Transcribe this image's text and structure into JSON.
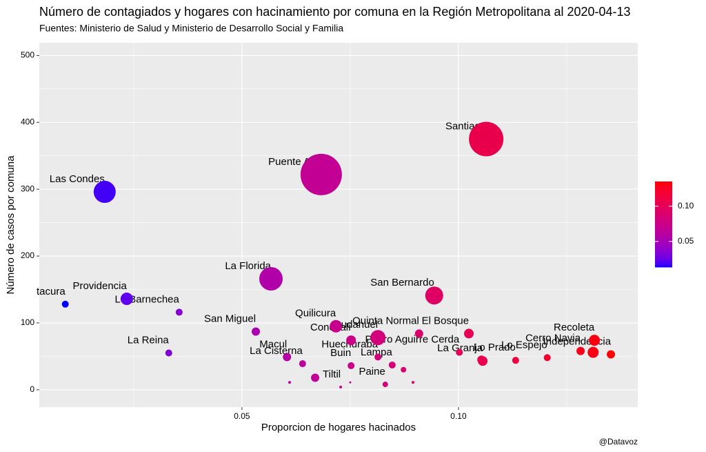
{
  "chart_data": {
    "type": "scatter",
    "title": "Número de contagiados y hogares con hacinamiento por comuna en la Región Metropolitana al 2020-04-13",
    "subtitle": "Fuentes: Ministerio de Salud y Ministerio de Desarrollo Social y Familia",
    "x_label": "Proporcion de hogares hacinados",
    "y_label": "Número de casos por comuna",
    "caption": "@Datavoz",
    "labels": [
      "Vitacura",
      "Las Condes",
      "Providencia",
      "Lo Barnechea",
      "La Reina",
      "San Miguel",
      "La Florida",
      "Puente Alto",
      "Santiago",
      "San Bernardo",
      "Quilicura",
      "Conchalí",
      "Pudahuel",
      "Quinta Normal",
      "El Bosque",
      "Pedro Aguirre Cerda",
      "La Granja",
      "Lo Prado",
      "Lo Espejo",
      "Cerro Navia",
      "Recoleta",
      "Independencia",
      "Macul",
      "La Cisterna",
      "Huechuraba",
      "Buin",
      "Lampa",
      "Tiltil",
      "Paine",
      null,
      null,
      null,
      null,
      null,
      null,
      null
    ],
    "x": [
      0.0092,
      0.0183,
      0.0234,
      0.0355,
      0.0331,
      0.0532,
      0.0567,
      0.0683,
      0.1064,
      0.0944,
      0.0717,
      0.0752,
      0.0814,
      0.0909,
      0.1024,
      0.1002,
      0.1056,
      0.1132,
      0.1205,
      0.1282,
      0.1314,
      0.1352,
      0.0604,
      0.064,
      0.0814,
      0.0752,
      0.0847,
      0.0728,
      0.0831,
      0.0669,
      0.0873,
      0.0895,
      0.061,
      0.075,
      0.1311,
      0.1053
    ],
    "y": [
      128,
      296,
      136,
      116,
      55,
      87,
      166,
      322,
      375,
      141,
      95,
      74,
      78,
      84,
      84,
      56,
      43,
      44,
      48,
      58,
      74,
      53,
      49,
      39,
      49,
      36,
      37,
      4,
      8,
      18,
      30,
      11,
      11,
      11,
      56,
      45
    ],
    "sizes": [
      5,
      16,
      9,
      5,
      5,
      6,
      17,
      30,
      25,
      13,
      9,
      7,
      11,
      6,
      7,
      5,
      7,
      5,
      5,
      6,
      8,
      6,
      6,
      5,
      5,
      5,
      5,
      2,
      4,
      6,
      4,
      2,
      2,
      1.5,
      8,
      6
    ],
    "xlim": [
      0.0032,
      0.1414
    ],
    "ylim": [
      -26,
      519
    ],
    "xticks": [
      0.05,
      {
        "value": 0.1,
        "label": "0.10"
      }
    ],
    "yticks": [
      0,
      100,
      200,
      300,
      400,
      500
    ],
    "grid": true,
    "color_scale": {
      "low": "#0000FF",
      "high": "#FF0000",
      "limits": [
        0.0137,
        0.135
      ],
      "ticks": [
        0.05,
        {
          "value": 0.1,
          "label": "0.10"
        }
      ]
    }
  }
}
